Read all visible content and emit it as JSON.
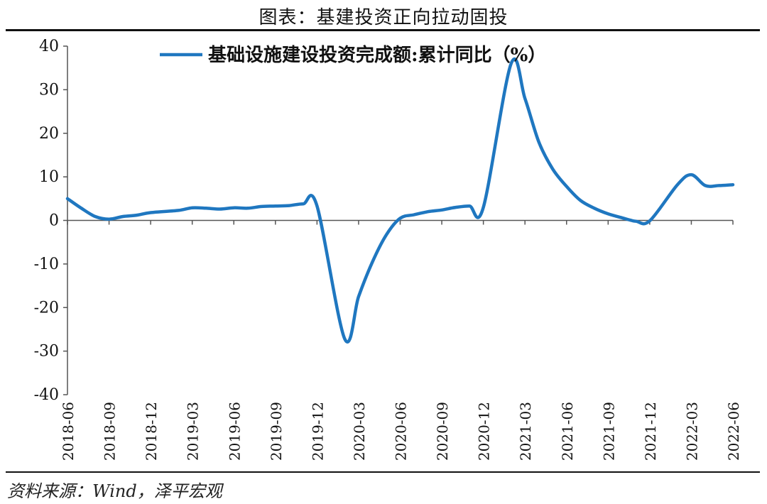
{
  "figure": {
    "title": "图表：基建投资正向拉动固投",
    "source": "资料来源：Wind，泽平宏观"
  },
  "colors": {
    "series": "#1f77c0",
    "axis": "#555555",
    "text": "#111111"
  },
  "chart_data": {
    "type": "line",
    "x_tick_labels": [
      "2018-06",
      "2018-09",
      "2018-12",
      "2019-03",
      "2019-06",
      "2019-09",
      "2019-12",
      "2020-03",
      "2020-06",
      "2020-09",
      "2020-12",
      "2021-03",
      "2021-06",
      "2021-09",
      "2021-12",
      "2022-03",
      "2022-06"
    ],
    "ylim": [
      -40,
      40
    ],
    "y_ticks": [
      40,
      30,
      20,
      10,
      0,
      -10,
      -20,
      -30,
      -40
    ],
    "legend_position": "top",
    "series": [
      {
        "name": "基础设施建设投资完成额:累计同比（%）",
        "x": [
          "2018-06",
          "2018-07",
          "2018-08",
          "2018-09",
          "2018-10",
          "2018-11",
          "2018-12",
          "2019-02",
          "2019-03",
          "2019-04",
          "2019-05",
          "2019-06",
          "2019-07",
          "2019-08",
          "2019-09",
          "2019-10",
          "2019-11",
          "2019-12",
          "2020-02",
          "2020-03",
          "2020-04",
          "2020-05",
          "2020-06",
          "2020-07",
          "2020-08",
          "2020-09",
          "2020-10",
          "2020-11",
          "2020-12",
          "2021-02",
          "2021-03",
          "2021-04",
          "2021-05",
          "2021-06",
          "2021-07",
          "2021-08",
          "2021-09",
          "2021-10",
          "2021-11",
          "2021-12",
          "2022-02",
          "2022-03",
          "2022-04",
          "2022-05",
          "2022-06"
        ],
        "values": [
          5.0,
          2.8,
          0.9,
          0.3,
          0.9,
          1.2,
          1.8,
          2.3,
          2.9,
          2.8,
          2.6,
          2.9,
          2.8,
          3.2,
          3.3,
          3.4,
          3.8,
          3.3,
          -27.2,
          -17.5,
          -9.5,
          -3.3,
          0.5,
          1.3,
          2.0,
          2.4,
          3.0,
          3.3,
          3.0,
          36.0,
          28.0,
          18.0,
          11.8,
          7.8,
          4.6,
          2.8,
          1.5,
          0.6,
          -0.2,
          -0.1,
          8.2,
          10.5,
          8.0,
          8.0,
          8.2
        ]
      }
    ]
  }
}
